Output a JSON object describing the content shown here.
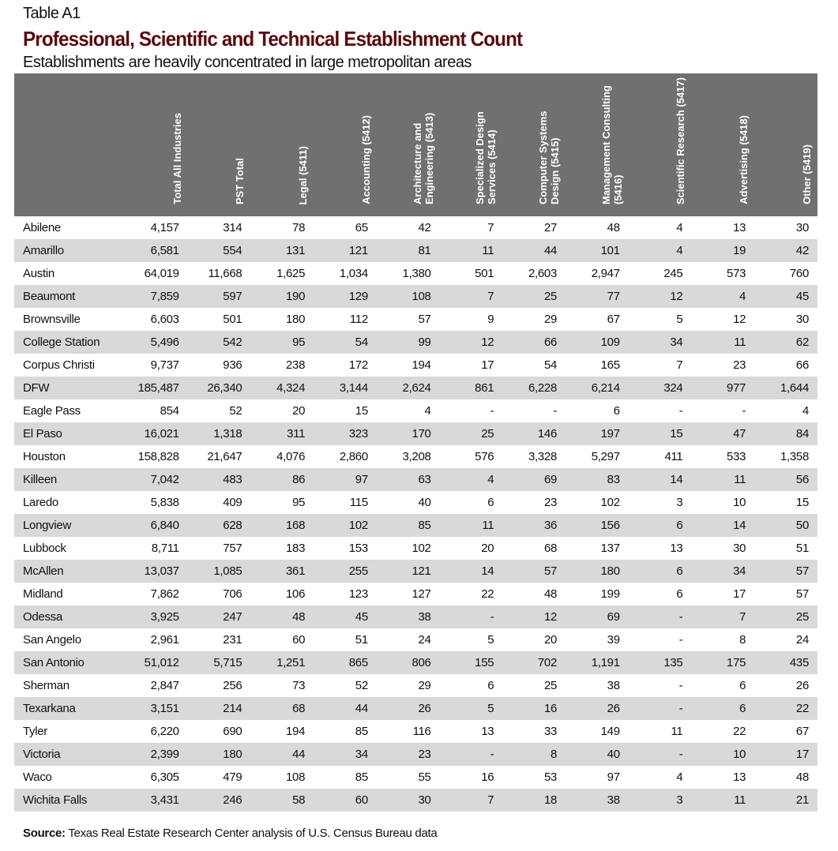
{
  "label": "Table A1",
  "title": "Professional, Scientific and Technical Establishment Count",
  "subtitle": "Establishments are heavily concentrated in large metropolitan areas",
  "columns": [
    "",
    "Total All Industries",
    "PST Total",
    "Legal (5411)",
    "Accounting (5412)",
    "Architecture and Engineering (5413)",
    "Specialized Design Services (5414)",
    "Computer Systems Design (5415)",
    "Management Consulting (5416)",
    "Scientific Research (5417)",
    "Advertising (5418)",
    "Other  (5419)"
  ],
  "rows": [
    [
      "Abilene",
      "4,157",
      "314",
      "78",
      "65",
      "42",
      "7",
      "27",
      "48",
      "4",
      "13",
      "30"
    ],
    [
      "Amarillo",
      "6,581",
      "554",
      "131",
      "121",
      "81",
      "11",
      "44",
      "101",
      "4",
      "19",
      "42"
    ],
    [
      "Austin",
      "64,019",
      "11,668",
      "1,625",
      "1,034",
      "1,380",
      "501",
      "2,603",
      "2,947",
      "245",
      "573",
      "760"
    ],
    [
      "Beaumont",
      "7,859",
      "597",
      "190",
      "129",
      "108",
      "7",
      "25",
      "77",
      "12",
      "4",
      "45"
    ],
    [
      "Brownsville",
      "6,603",
      "501",
      "180",
      "112",
      "57",
      "9",
      "29",
      "67",
      "5",
      "12",
      "30"
    ],
    [
      "College Station",
      "5,496",
      "542",
      "95",
      "54",
      "99",
      "12",
      "66",
      "109",
      "34",
      "11",
      "62"
    ],
    [
      "Corpus Christi",
      "9,737",
      "936",
      "238",
      "172",
      "194",
      "17",
      "54",
      "165",
      "7",
      "23",
      "66"
    ],
    [
      "DFW",
      "185,487",
      "26,340",
      "4,324",
      "3,144",
      "2,624",
      "861",
      "6,228",
      "6,214",
      "324",
      "977",
      "1,644"
    ],
    [
      "Eagle Pass",
      "854",
      "52",
      "20",
      "15",
      "4",
      "-",
      "-",
      "6",
      "-",
      "-",
      "4"
    ],
    [
      "El Paso",
      "16,021",
      "1,318",
      "311",
      "323",
      "170",
      "25",
      "146",
      "197",
      "15",
      "47",
      "84"
    ],
    [
      "Houston",
      "158,828",
      "21,647",
      "4,076",
      "2,860",
      "3,208",
      "576",
      "3,328",
      "5,297",
      "411",
      "533",
      "1,358"
    ],
    [
      "Killeen",
      "7,042",
      "483",
      "86",
      "97",
      "63",
      "4",
      "69",
      "83",
      "14",
      "11",
      "56"
    ],
    [
      "Laredo",
      "5,838",
      "409",
      "95",
      "115",
      "40",
      "6",
      "23",
      "102",
      "3",
      "10",
      "15"
    ],
    [
      "Longview",
      "6,840",
      "628",
      "168",
      "102",
      "85",
      "11",
      "36",
      "156",
      "6",
      "14",
      "50"
    ],
    [
      "Lubbock",
      "8,711",
      "757",
      "183",
      "153",
      "102",
      "20",
      "68",
      "137",
      "13",
      "30",
      "51"
    ],
    [
      "McAllen",
      "13,037",
      "1,085",
      "361",
      "255",
      "121",
      "14",
      "57",
      "180",
      "6",
      "34",
      "57"
    ],
    [
      "Midland",
      "7,862",
      "706",
      "106",
      "123",
      "127",
      "22",
      "48",
      "199",
      "6",
      "17",
      "57"
    ],
    [
      "Odessa",
      "3,925",
      "247",
      "48",
      "45",
      "38",
      "-",
      "12",
      "69",
      "-",
      "7",
      "25"
    ],
    [
      "San Angelo",
      "2,961",
      "231",
      "60",
      "51",
      "24",
      "5",
      "20",
      "39",
      "-",
      "8",
      "24"
    ],
    [
      "San Antonio",
      "51,012",
      "5,715",
      "1,251",
      "865",
      "806",
      "155",
      "702",
      "1,191",
      "135",
      "175",
      "435"
    ],
    [
      "Sherman",
      "2,847",
      "256",
      "73",
      "52",
      "29",
      "6",
      "25",
      "38",
      "-",
      "6",
      "26"
    ],
    [
      "Texarkana",
      "3,151",
      "214",
      "68",
      "44",
      "26",
      "5",
      "16",
      "26",
      "-",
      "6",
      "22"
    ],
    [
      "Tyler",
      "6,220",
      "690",
      "194",
      "85",
      "116",
      "13",
      "33",
      "149",
      "11",
      "22",
      "67"
    ],
    [
      "Victoria",
      "2,399",
      "180",
      "44",
      "34",
      "23",
      "-",
      "8",
      "40",
      "-",
      "10",
      "17"
    ],
    [
      "Waco",
      "6,305",
      "479",
      "108",
      "85",
      "55",
      "16",
      "53",
      "97",
      "4",
      "13",
      "48"
    ],
    [
      "Wichita Falls",
      "3,431",
      "246",
      "58",
      "60",
      "30",
      "7",
      "18",
      "38",
      "3",
      "11",
      "21"
    ]
  ],
  "source": {
    "label": "Source:",
    "text": " Texas Real Estate Research Center analysis of U.S. Census Bureau data"
  },
  "colors": {
    "title": "#5a0a0c",
    "header_bg": "#707070",
    "stripe": "#d9d9d9"
  }
}
